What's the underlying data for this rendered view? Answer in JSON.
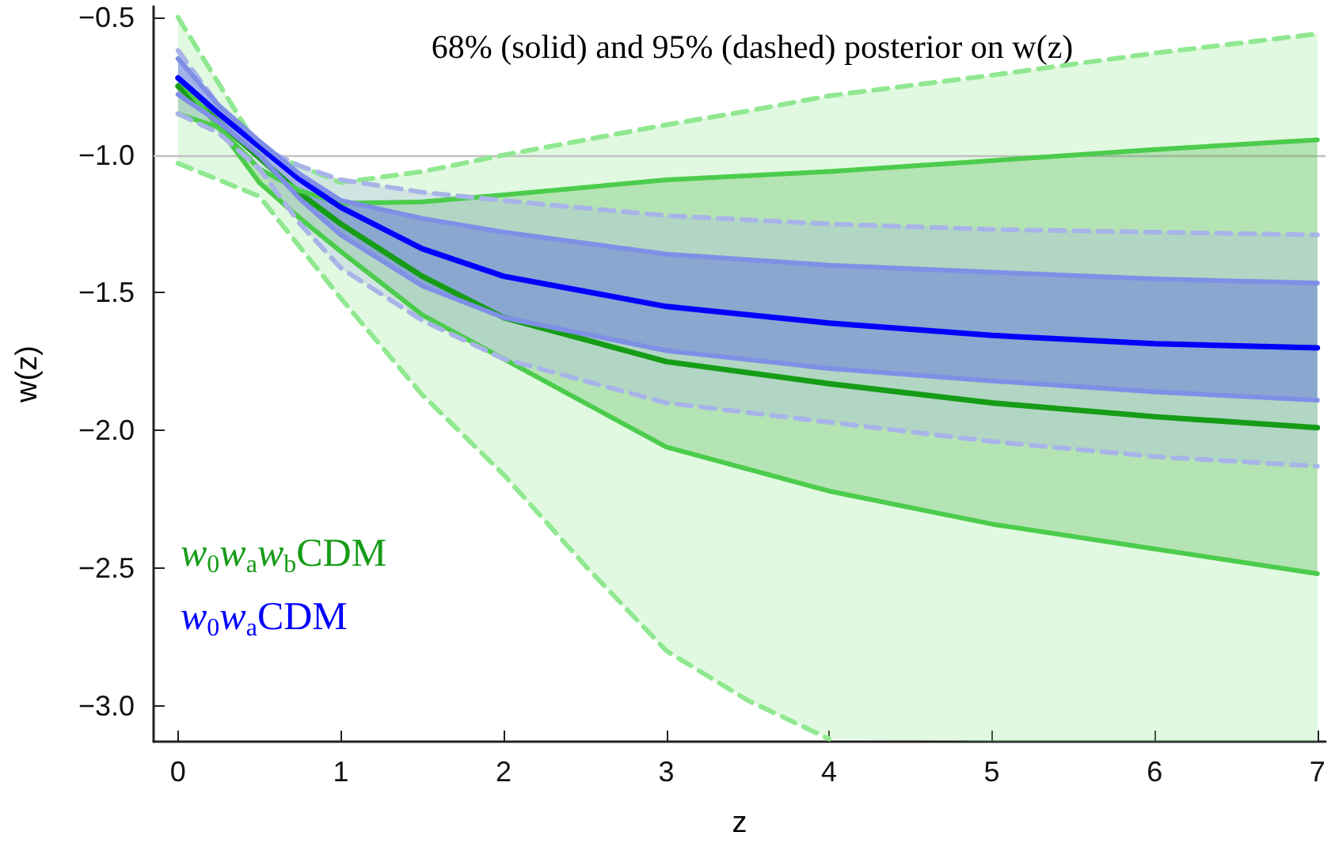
{
  "chart_data": {
    "type": "line",
    "title": "68% (solid) and 95% (dashed) posterior on w(z)",
    "xlabel": "z",
    "ylabel": "w(z)",
    "x": [
      0,
      0.25,
      0.5,
      0.75,
      1,
      1.5,
      2,
      3,
      4,
      5,
      6,
      7
    ],
    "series": [
      {
        "color": "#90e890",
        "line_style": "dashed",
        "x": [
          0,
          0.5,
          1,
          1.5,
          2,
          2.5,
          3,
          3.5,
          4,
          5,
          6,
          7
        ],
        "values": [
          null,
          null,
          null,
          null,
          null,
          null,
          null,
          null,
          null,
          null,
          null,
          null
        ],
        "upper": [
          -0.5,
          -0.98,
          -1.1,
          -1.06,
          -1.0,
          -0.945,
          -0.89,
          -0.84,
          -0.785,
          -0.71,
          -0.63,
          -0.56
        ],
        "lower": [
          -1.03,
          -1.15,
          -1.52,
          -1.87,
          -2.16,
          -2.49,
          -2.8,
          -2.98,
          -3.12,
          -3.13,
          -3.13,
          -3.13
        ]
      },
      {
        "color": "#90e890",
        "line_style": "dashed",
        "x": [
          0,
          0.5,
          1,
          1.5,
          2,
          2.5,
          3,
          3.5,
          4,
          5,
          6,
          7
        ],
        "values": [
          -0.5,
          -0.98,
          -1.1,
          -1.06,
          -1.0,
          -0.945,
          -0.89,
          -0.84,
          -0.785,
          -0.71,
          -0.63,
          -0.56
        ]
      },
      {
        "color": "#90e890",
        "line_style": "dashed",
        "x": [
          0,
          0.5,
          1,
          1.5,
          2,
          2.5,
          3,
          3.5,
          4
        ],
        "values": [
          -1.03,
          -1.15,
          -1.52,
          -1.87,
          -2.16,
          -2.49,
          -2.8,
          -2.98,
          -3.12
        ]
      },
      {
        "name": "w$_{0}$w$_{a}$w$_{b}$CDM",
        "color": "#169c16",
        "line_style": "solid",
        "values": [
          -0.75,
          -0.88,
          -1.01,
          -1.14,
          -1.25,
          -1.44,
          -1.59,
          -1.75,
          -1.83,
          -1.9,
          -1.95,
          -1.99
        ],
        "upper": [
          -0.85,
          -0.9,
          -1.05,
          -1.13,
          -1.175,
          -1.17,
          -1.145,
          -1.09,
          -1.06,
          -1.02,
          -0.98,
          -0.945
        ],
        "lower": [
          -0.72,
          -0.9,
          -1.1,
          -1.23,
          -1.35,
          -1.58,
          -1.74,
          -2.06,
          -2.22,
          -2.34,
          -2.43,
          -2.52
        ]
      },
      {
        "color": "#4ccc4c",
        "line_style": "solid",
        "values": [
          -0.85,
          -0.9,
          -1.05,
          -1.13,
          -1.175,
          -1.17,
          -1.145,
          -1.09,
          -1.06,
          -1.02,
          -0.98,
          -0.945
        ]
      },
      {
        "color": "#4ccc4c",
        "line_style": "solid",
        "values": [
          -0.72,
          -0.9,
          -1.1,
          -1.23,
          -1.35,
          -1.58,
          -1.74,
          -2.06,
          -2.22,
          -2.34,
          -2.43,
          -2.52
        ]
      },
      {
        "color": "#a8b4e8",
        "line_style": "dashed",
        "values": [
          null,
          null,
          null,
          null,
          null,
          null,
          null,
          null,
          null,
          null,
          null,
          null
        ],
        "upper": [
          -0.62,
          -0.82,
          -0.97,
          -1.04,
          -1.09,
          -1.135,
          -1.165,
          -1.22,
          -1.25,
          -1.27,
          -1.28,
          -1.29
        ],
        "lower": [
          -0.85,
          -0.92,
          -1.05,
          -1.25,
          -1.41,
          -1.6,
          -1.74,
          -1.9,
          -1.97,
          -2.04,
          -2.095,
          -2.13
        ]
      },
      {
        "color": "#a8b4e8",
        "line_style": "dashed",
        "values": [
          -0.62,
          -0.82,
          -0.97,
          -1.04,
          -1.09,
          -1.135,
          -1.165,
          -1.22,
          -1.25,
          -1.27,
          -1.28,
          -1.29
        ]
      },
      {
        "color": "#a8b4e8",
        "line_style": "dashed",
        "values": [
          -0.85,
          -0.92,
          -1.05,
          -1.25,
          -1.41,
          -1.6,
          -1.74,
          -1.9,
          -1.97,
          -2.04,
          -2.095,
          -2.13
        ]
      },
      {
        "name": "w$_{0}$w$_{a}$CDM",
        "color": "#0000ff",
        "line_style": "solid",
        "values": [
          -0.72,
          -0.85,
          -0.97,
          -1.09,
          -1.19,
          -1.34,
          -1.44,
          -1.55,
          -1.61,
          -1.655,
          -1.685,
          -1.7
        ],
        "upper": [
          -0.65,
          -0.82,
          -0.95,
          -1.07,
          -1.165,
          -1.23,
          -1.28,
          -1.36,
          -1.4,
          -1.425,
          -1.45,
          -1.465
        ],
        "lower": [
          -0.78,
          -0.88,
          -1.0,
          -1.16,
          -1.29,
          -1.475,
          -1.59,
          -1.71,
          -1.775,
          -1.82,
          -1.86,
          -1.89
        ]
      },
      {
        "color": "#7f8fe6",
        "line_style": "solid",
        "values": [
          -0.65,
          -0.82,
          -0.95,
          -1.07,
          -1.165,
          -1.23,
          -1.28,
          -1.36,
          -1.4,
          -1.425,
          -1.45,
          -1.465
        ]
      },
      {
        "color": "#7f8fe6",
        "line_style": "solid",
        "values": [
          -0.78,
          -0.88,
          -1.0,
          -1.16,
          -1.29,
          -1.475,
          -1.59,
          -1.71,
          -1.775,
          -1.82,
          -1.86,
          -1.89
        ]
      }
    ],
    "xlim": [
      -0.15,
      7.05
    ],
    "xticks": [
      0,
      1,
      2,
      3,
      4,
      5,
      6,
      7
    ],
    "ylim": [
      -3.13,
      -0.46
    ],
    "yticks": [
      {
        "value": -3.0,
        "label": "−3.0"
      },
      -2.5,
      {
        "value": -2.0,
        "label": "−2.0"
      },
      -1.5,
      {
        "value": -1.0,
        "label": "−1.0"
      },
      -0.5
    ],
    "ref_lines": [
      {
        "axis": "y",
        "value": -1.0,
        "color": "#c0c0c0"
      }
    ],
    "grid": false,
    "marker": "none"
  }
}
